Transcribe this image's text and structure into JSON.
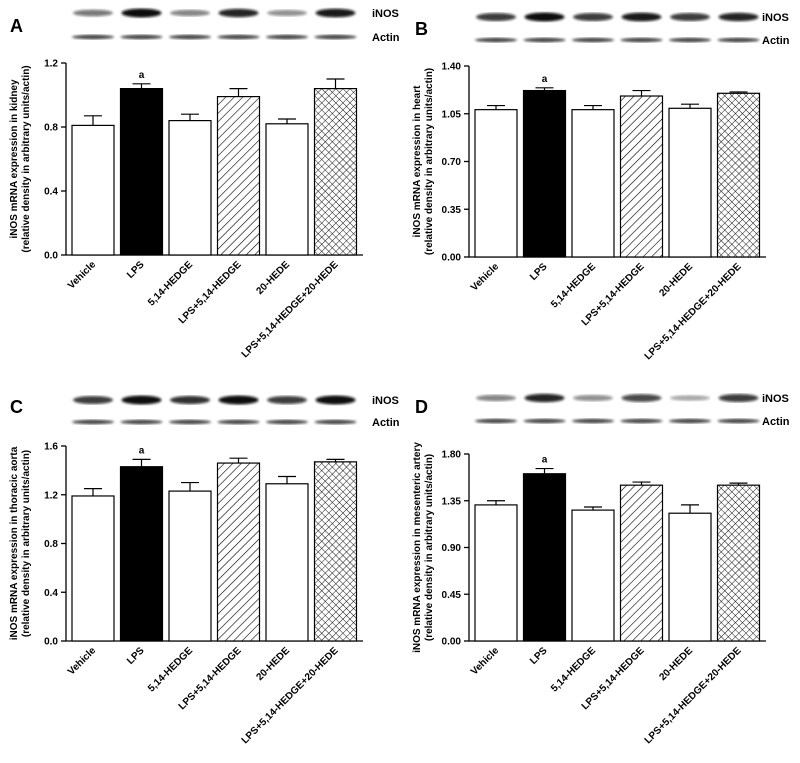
{
  "chart_data": [
    {
      "type": "bar",
      "panel": "A",
      "blot_labels": [
        "iNOS",
        "Actin"
      ],
      "ylabel": [
        "iNOS mRNA expression in kidney",
        "(relative density in arbitrary units/actin)"
      ],
      "categories": [
        "Vehicle",
        "LPS",
        "5,14-HEDGE",
        "LPS+5,14-HEDGE",
        "20-HEDE",
        "LPS+5,14-HEDGE+20-HEDE"
      ],
      "values": [
        0.81,
        1.04,
        0.84,
        0.99,
        0.82,
        1.04
      ],
      "errors": [
        0.06,
        0.03,
        0.04,
        0.05,
        0.03,
        0.06
      ],
      "fills": [
        "#ffffff",
        "#000000",
        "#ffffff",
        "diagonal",
        "#ffffff",
        "crosshatch"
      ],
      "annotations": [
        {
          "text": "a",
          "category": "LPS"
        }
      ],
      "ylim": [
        0,
        1.2
      ],
      "yticks": [
        {
          "value": 0,
          "label": "0.0"
        },
        0.4,
        0.8,
        1.2
      ]
    },
    {
      "type": "bar",
      "panel": "B",
      "blot_labels": [
        "iNOS",
        "Actin"
      ],
      "ylabel": [
        "iNOS mRNA expression in heart",
        "(relative density in arbitrary units/actin)"
      ],
      "categories": [
        "Vehicle",
        "LPS",
        "5,14-HEDGE",
        "LPS+5,14-HEDGE",
        "20-HEDE",
        "LPS+5,14-HEDGE+20-HEDE"
      ],
      "values": [
        1.08,
        1.22,
        1.08,
        1.18,
        1.09,
        1.2
      ],
      "errors": [
        0.03,
        0.02,
        0.03,
        0.04,
        0.03,
        0.01
      ],
      "fills": [
        "#ffffff",
        "#000000",
        "#ffffff",
        "diagonal",
        "#ffffff",
        "crosshatch"
      ],
      "annotations": [
        {
          "text": "a",
          "category": "LPS"
        }
      ],
      "ylim": [
        0,
        1.4
      ],
      "yticks": [
        {
          "value": 0,
          "label": "0.00"
        },
        {
          "value": 0.35,
          "label": "0.35"
        },
        {
          "value": 0.7,
          "label": "0.70"
        },
        {
          "value": 1.05,
          "label": "1.05"
        },
        {
          "value": 1.4,
          "label": "1.40"
        }
      ]
    },
    {
      "type": "bar",
      "panel": "C",
      "blot_labels": [
        "iNOS",
        "Actin"
      ],
      "ylabel": [
        "iNOS mRNA expression in thoracic aorta",
        "(relative density in arbitrary units/actin)"
      ],
      "categories": [
        "Vehicle",
        "LPS",
        "5,14-HEDGE",
        "LPS+5,14-HEDGE",
        "20-HEDE",
        "LPS+5,14-HEDGE+20-HEDE"
      ],
      "values": [
        1.19,
        1.43,
        1.23,
        1.46,
        1.29,
        1.47
      ],
      "errors": [
        0.06,
        0.06,
        0.07,
        0.04,
        0.06,
        0.02
      ],
      "fills": [
        "#ffffff",
        "#000000",
        "#ffffff",
        "diagonal",
        "#ffffff",
        "crosshatch"
      ],
      "annotations": [
        {
          "text": "a",
          "category": "LPS"
        }
      ],
      "ylim": [
        0,
        1.6
      ],
      "yticks": [
        {
          "value": 0,
          "label": "0.0"
        },
        0.4,
        0.8,
        1.2,
        1.6
      ]
    },
    {
      "type": "bar",
      "panel": "D",
      "blot_labels": [
        "iNOS",
        "Actin"
      ],
      "ylabel": [
        "iNOS mRNA expression in mesenteric artery",
        "(relative density in arbitrary units/actin)"
      ],
      "categories": [
        "Vehicle",
        "LPS",
        "5,14-HEDGE",
        "LPS+5,14-HEDGE",
        "20-HEDE",
        "LPS+5,14-HEDGE+20-HEDE"
      ],
      "values": [
        1.31,
        1.61,
        1.26,
        1.5,
        1.23,
        1.5
      ],
      "errors": [
        0.04,
        0.05,
        0.03,
        0.03,
        0.08,
        0.02
      ],
      "fills": [
        "#ffffff",
        "#000000",
        "#ffffff",
        "diagonal",
        "#ffffff",
        "crosshatch"
      ],
      "annotations": [
        {
          "text": "a",
          "category": "LPS"
        }
      ],
      "ylim": [
        0,
        1.8
      ],
      "yticks": [
        {
          "value": 0,
          "label": "0.00"
        },
        {
          "value": 0.45,
          "label": "0.45"
        },
        {
          "value": 0.9,
          "label": "0.90"
        },
        {
          "value": 1.35,
          "label": "1.35"
        },
        {
          "value": 1.8,
          "label": "1.80"
        }
      ]
    }
  ]
}
